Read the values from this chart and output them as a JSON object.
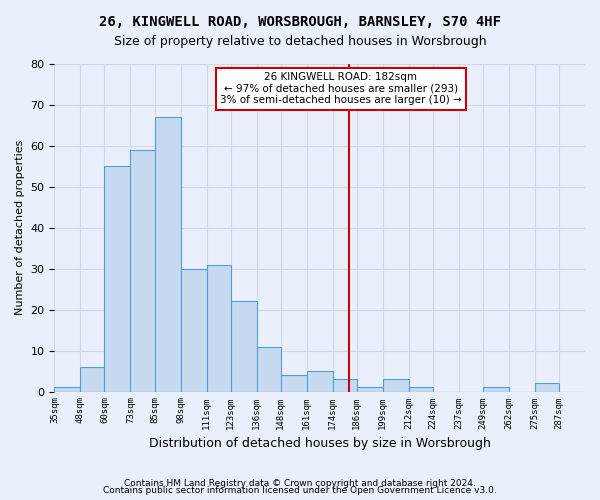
{
  "title1": "26, KINGWELL ROAD, WORSBROUGH, BARNSLEY, S70 4HF",
  "title2": "Size of property relative to detached houses in Worsbrough",
  "xlabel": "Distribution of detached houses by size in Worsbrough",
  "ylabel": "Number of detached properties",
  "footer1": "Contains HM Land Registry data © Crown copyright and database right 2024.",
  "footer2": "Contains public sector information licensed under the Open Government Licence v3.0.",
  "annotation_title": "26 KINGWELL ROAD: 182sqm",
  "annotation_line1": "← 97% of detached houses are smaller (293)",
  "annotation_line2": "3% of semi-detached houses are larger (10) →",
  "vline_x": 182,
  "bar_edges": [
    35,
    48,
    60,
    73,
    85,
    98,
    111,
    123,
    136,
    148,
    161,
    174,
    186,
    199,
    212,
    224,
    237,
    249,
    262,
    275,
    287,
    300
  ],
  "bar_heights": [
    1,
    6,
    55,
    59,
    67,
    30,
    31,
    22,
    11,
    4,
    5,
    3,
    1,
    3,
    1,
    0,
    0,
    1,
    0,
    2,
    0
  ],
  "bar_color": "#c5d9f0",
  "bar_edgecolor": "#5b9bd5",
  "vline_color": "#cc0000",
  "annotation_box_edgecolor": "#cc0000",
  "annotation_box_facecolor": "white",
  "grid_color": "#d0d8e8",
  "bg_color": "#eaf0fb",
  "ylim": [
    0,
    80
  ],
  "yticks": [
    0,
    10,
    20,
    30,
    40,
    50,
    60,
    70,
    80
  ]
}
